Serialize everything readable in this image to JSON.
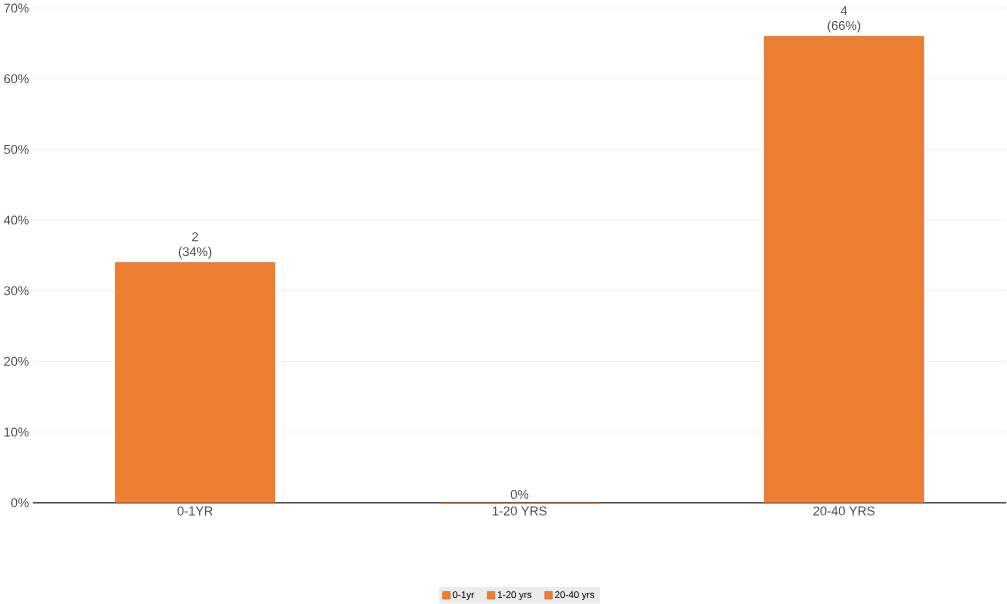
{
  "chart_data": {
    "type": "bar",
    "categories": [
      "0-1YR",
      "1-20 YRS",
      "20-40 YRS"
    ],
    "series": [
      {
        "name": "0-1yr",
        "color": "#ed7d31",
        "values": [
          34,
          null,
          null
        ],
        "value_labels": [
          "2 (34%)",
          null,
          null
        ]
      },
      {
        "name": "1-20 yrs",
        "color": "#ed7d31",
        "values": [
          null,
          0,
          null
        ],
        "value_labels": [
          null,
          "0%",
          null
        ]
      },
      {
        "name": "20-40 yrs",
        "color": "#ed7d31",
        "values": [
          null,
          null,
          66
        ],
        "value_labels": [
          null,
          null,
          "4 (66%)"
        ]
      }
    ],
    "ylim": [
      0,
      70
    ],
    "yticks": [
      {
        "value": 0,
        "label": "0%"
      },
      {
        "value": 10,
        "label": "10%"
      },
      {
        "value": 20,
        "label": "20%"
      },
      {
        "value": 30,
        "label": "30%"
      },
      {
        "value": 40,
        "label": "40%"
      },
      {
        "value": 50,
        "label": "50%"
      },
      {
        "value": 60,
        "label": "60%"
      },
      {
        "value": 70,
        "label": "70%"
      }
    ],
    "grid": "y",
    "legend": "bottom"
  }
}
